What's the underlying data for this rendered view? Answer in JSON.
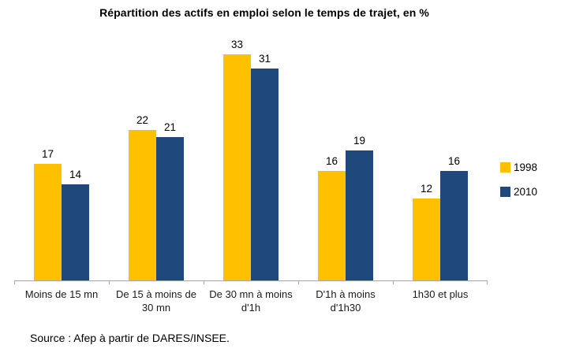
{
  "chart_data": {
    "type": "bar",
    "title": "Répartition des actifs en emploi selon le temps de trajet, en %",
    "categories": [
      "Moins de 15 mn",
      "De 15 à moins de\n30 mn",
      "De 30 mn à moins\nd'1h",
      "D'1h à moins\nd'1h30",
      "1h30 et plus"
    ],
    "series": [
      {
        "name": "1998",
        "color": "#FFC000",
        "values": [
          17,
          22,
          33,
          16,
          12
        ]
      },
      {
        "name": "2010",
        "color": "#1F497D",
        "values": [
          14,
          21,
          31,
          19,
          16
        ]
      }
    ],
    "xlabel": "",
    "ylabel": "",
    "ylim": [
      0,
      35
    ],
    "grid": false,
    "legend_position": "right",
    "value_labels": true,
    "axis_color": "#A6A6A6"
  },
  "source_note": "Source : Afep à partir de DARES/INSEE."
}
